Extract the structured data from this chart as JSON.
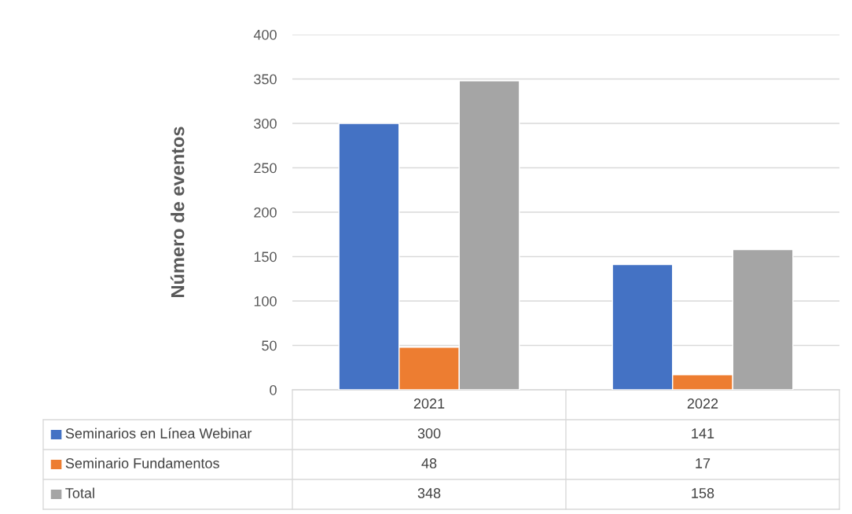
{
  "chart_data": {
    "type": "bar",
    "ylabel": "Número de eventos",
    "categories": [
      "2021",
      "2022"
    ],
    "series": [
      {
        "name": "Seminarios en Línea Webinar",
        "color": "#4472c4",
        "values": [
          300,
          141
        ]
      },
      {
        "name": "Seminario Fundamentos",
        "color": "#ed7d31",
        "values": [
          48,
          17
        ]
      },
      {
        "name": "Total",
        "color": "#a5a5a5",
        "values": [
          348,
          158
        ]
      }
    ],
    "ylim": [
      0,
      400
    ],
    "yticks": [
      0,
      50,
      100,
      150,
      200,
      250,
      300,
      350,
      400
    ],
    "grid": "y",
    "legend": "bottom",
    "data_labels": true
  }
}
